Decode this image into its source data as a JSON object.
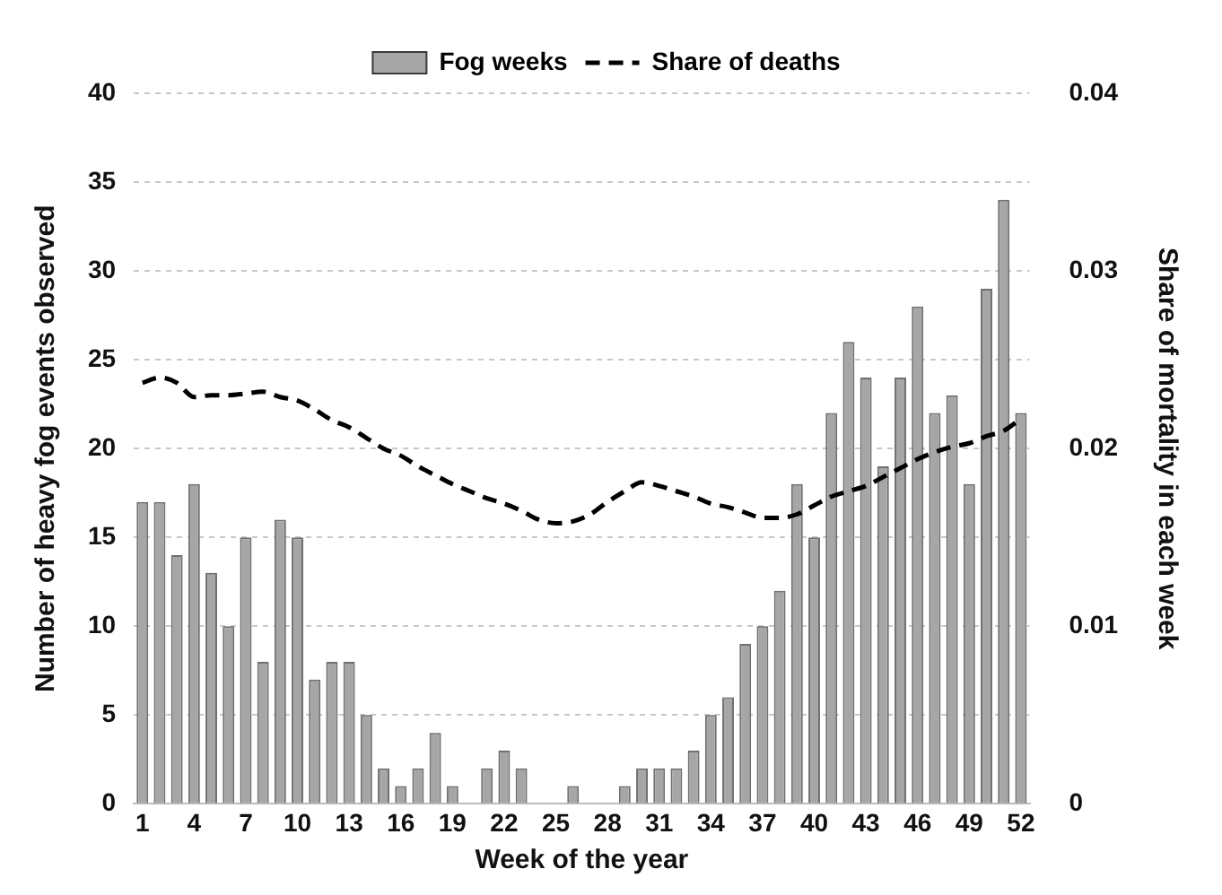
{
  "chart_data": {
    "type": "bar",
    "xlabel": "Week of the year",
    "ylabel": "Number of heavy fog events observed",
    "y2label": "Share of mortality in each week",
    "categories": [
      "1",
      null,
      null,
      "4",
      null,
      null,
      "7",
      null,
      null,
      "10",
      null,
      null,
      "13",
      null,
      null,
      "16",
      null,
      null,
      "19",
      null,
      null,
      "22",
      null,
      null,
      "25",
      null,
      null,
      "28",
      null,
      null,
      "31",
      null,
      null,
      "34",
      null,
      null,
      "37",
      null,
      null,
      "40",
      null,
      null,
      "43",
      null,
      null,
      "46",
      null,
      null,
      "49",
      null,
      null,
      "52"
    ],
    "series": [
      {
        "name": "Fog weeks",
        "color": "#a6a6a6",
        "values": [
          17,
          17,
          14,
          18,
          13,
          10,
          15,
          8,
          16,
          15,
          7,
          8,
          8,
          5,
          2,
          1,
          2,
          4,
          1,
          0,
          2,
          3,
          2,
          0,
          0,
          1,
          0,
          0,
          1,
          2,
          2,
          2,
          3,
          5,
          6,
          9,
          10,
          12,
          18,
          15,
          22,
          26,
          24,
          19,
          24,
          28,
          22,
          23,
          18,
          29,
          34,
          22
        ]
      },
      {
        "name": "Share of deaths",
        "type": "line",
        "axis": "y2",
        "color": "#000000",
        "line_style": "dashed",
        "marker": "none",
        "values": [
          0.0237,
          0.024,
          0.0237,
          0.0229,
          0.023,
          0.023,
          0.0231,
          0.0232,
          0.0229,
          0.0227,
          0.0222,
          0.0216,
          0.0212,
          0.0206,
          0.02,
          0.0196,
          0.019,
          0.0185,
          0.018,
          0.0176,
          0.0172,
          0.0169,
          0.0165,
          0.016,
          0.0158,
          0.0159,
          0.0163,
          0.017,
          0.0176,
          0.0181,
          0.0179,
          0.0176,
          0.0173,
          0.0169,
          0.0167,
          0.0164,
          0.0161,
          0.0161,
          0.0163,
          0.0168,
          0.0173,
          0.0176,
          0.0179,
          0.0184,
          0.0189,
          0.0194,
          0.0198,
          0.0201,
          0.0203,
          0.0207,
          0.021,
          0.0217
        ]
      }
    ],
    "ylim": [
      0,
      40
    ],
    "yticks": [
      0,
      5,
      10,
      15,
      20,
      25,
      30,
      35,
      40
    ],
    "y2lim": [
      0,
      0.04
    ],
    "y2ticks": [
      0,
      0.01,
      0.02,
      0.03,
      0.04
    ],
    "grid": "y",
    "legend": "top"
  }
}
